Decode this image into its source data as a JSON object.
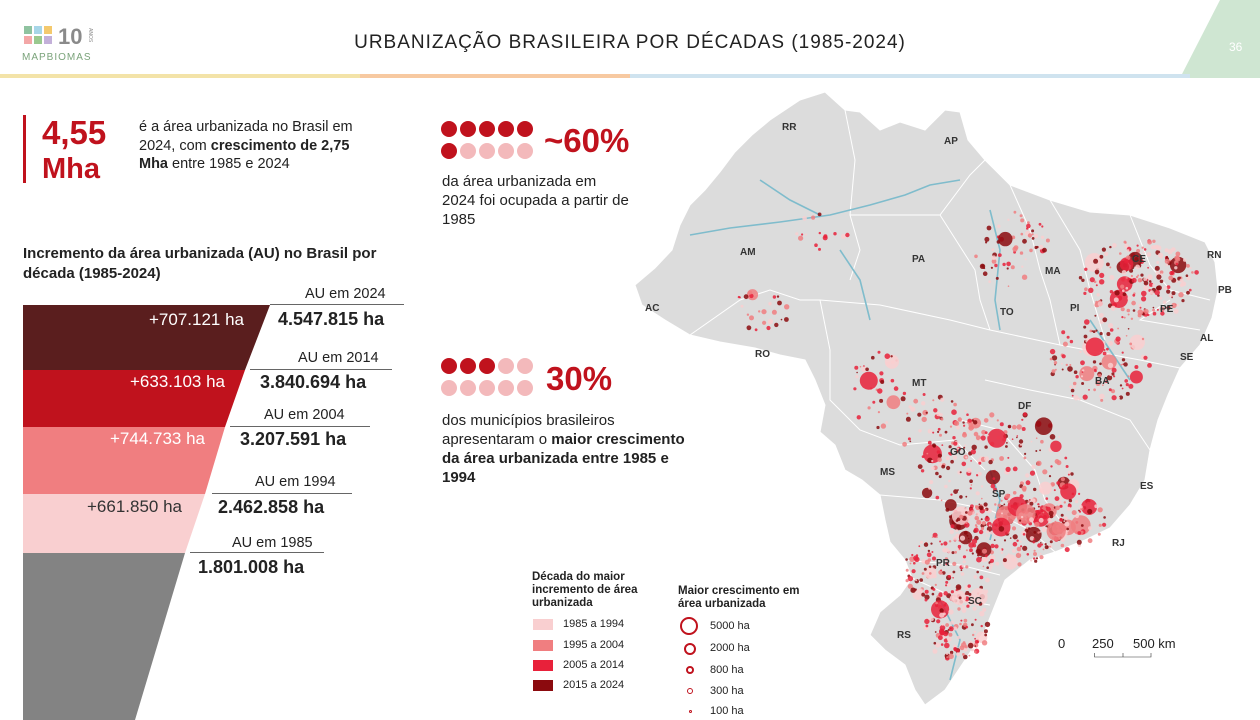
{
  "header": {
    "logo_word": "MAPBIOMAS",
    "logo_ten": "10",
    "logo_anos": "ANOS",
    "title": "URBANIZAÇÃO BRASILEIRA POR DÉCADAS (1985-2024)",
    "page_number": "36"
  },
  "highlight": {
    "value": "4,55",
    "unit": "Mha",
    "text_1": "é a área urbanizada no Brasil em 2024, com ",
    "text_bold": "crescimento de 2,75 Mha",
    "text_2": " entre 1985 e 2024"
  },
  "funnel": {
    "title": "Incremento da área urbanizada (AU) no Brasil por década (1985-2024)",
    "rows": [
      {
        "increment": "+707.121 ha",
        "au_label": "AU em 2024",
        "au_value": "4.547.815 ha",
        "color": "#5a1e1e"
      },
      {
        "increment": "+633.103 ha",
        "au_label": "AU em 2014",
        "au_value": "3.840.694 ha",
        "color": "#c0121d"
      },
      {
        "increment": "+744.733 ha",
        "au_label": "AU em 2004",
        "au_value": "3.207.591 ha",
        "color": "#f07e80"
      },
      {
        "increment": "+661.850 ha",
        "au_label": "AU em 1994",
        "au_value": "2.462.858 ha",
        "color": "#f9cfd0"
      },
      {
        "increment": "",
        "au_label": "AU em 1985",
        "au_value": "1.801.008 ha",
        "color": "#838383"
      }
    ]
  },
  "stat1": {
    "percent": "~60%",
    "filled_dots": 6,
    "text": "da área urbanizada em 2024 foi ocupada a partir de 1985"
  },
  "stat2": {
    "percent": "30%",
    "filled_dots": 3,
    "text_1": "dos municípios brasileiros apresentaram o ",
    "text_bold": "maior crescimento da área urbanizada entre 1985 e 1994"
  },
  "map": {
    "states": [
      "RR",
      "AP",
      "AM",
      "PA",
      "MA",
      "CE",
      "RN",
      "PB",
      "PI",
      "PE",
      "AL",
      "SE",
      "AC",
      "TO",
      "RO",
      "MT",
      "BA",
      "DF",
      "GO",
      "MS",
      "ES",
      "SP",
      "RJ",
      "PR",
      "SC",
      "RS"
    ]
  },
  "legend": {
    "decade_title": "Década do maior incremento de área urbanizada",
    "decades": [
      {
        "label": "1985 a 1994",
        "color": "#f9cfd0"
      },
      {
        "label": "1995 a 2004",
        "color": "#f07e80"
      },
      {
        "label": "2005 a 2014",
        "color": "#e8213a"
      },
      {
        "label": "2015 a 2024",
        "color": "#8b0a0e"
      }
    ],
    "size_title": "Maior crescimento em área urbanizada",
    "sizes": [
      "5000 ha",
      "2000 ha",
      "800 ha",
      "300 ha",
      "100 ha"
    ],
    "scale": [
      "0",
      "250",
      "500 km"
    ]
  }
}
